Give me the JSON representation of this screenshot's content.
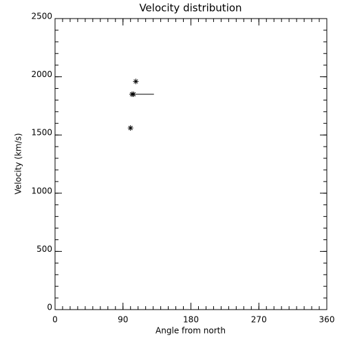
{
  "chart_data": {
    "type": "scatter",
    "title": "Velocity distribution",
    "x_label": "Angle from north",
    "y_label": "Velocity (km/s)",
    "xlim": [
      0,
      360
    ],
    "xticks": [
      0,
      90,
      180,
      270,
      360
    ],
    "x_minor_step": 10,
    "ylim": [
      0,
      2500
    ],
    "yticks": [
      0,
      500,
      1000,
      1500,
      2000,
      2500
    ],
    "y_minor_step": 100,
    "marker": "asterisk",
    "color": "#000000",
    "series": [
      {
        "x": [
          107,
          102,
          104,
          100
        ],
        "values": [
          1960,
          1850,
          1850,
          1560
        ]
      }
    ],
    "segments": [
      {
        "x": [
          100,
          131
        ],
        "values": [
          1850,
          1850
        ]
      }
    ]
  }
}
